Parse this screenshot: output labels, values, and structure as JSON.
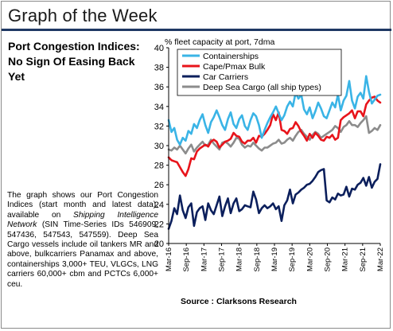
{
  "header": {
    "title": "Graph of the Week"
  },
  "subtitle": "Port Congestion Indices: No Sign Of Easing Back Yet",
  "description": {
    "part1": "The graph shows our Port Congestion Indices (start month and latest data), available on ",
    "italic": "Shipping Intelligence Network",
    "part2": " (SIN Time-Series IDs 546909, 547436, 547543, 547559). Deep Sea Cargo vessels include oil tankers MR and above, bulkcarriers Panamax and above, containerships 3,000+ TEU, VLGCs, LNG carriers 60,000+ cbm and PCTCs 6,000+ ceu."
  },
  "source": "Source : Clarksons Research",
  "colors": {
    "containerships": "#3ab4e6",
    "cape_pmax": "#e8141b",
    "car_carriers": "#0b1f5c",
    "deep_sea": "#8c8c8c",
    "header_rule": "#1f3864"
  },
  "chart_data": {
    "type": "line",
    "ylabel": "% fleet capacity at port, 7dma",
    "ylim": [
      20,
      40
    ],
    "yticks": [
      20,
      22,
      24,
      26,
      28,
      30,
      32,
      34,
      36,
      38,
      40
    ],
    "x_start": "2016-03",
    "x_end": "2022-03",
    "xtick_labels": [
      "Mar-16",
      "Sep-16",
      "Mar-17",
      "Sep-17",
      "Mar-18",
      "Sep-18",
      "Mar-19",
      "Sep-19",
      "Mar-20",
      "Sep-20",
      "Mar-21",
      "Sep-21",
      "Mar-22"
    ],
    "legend_position": "top-right",
    "grid": false,
    "series": [
      {
        "name": "Containerships",
        "color_key": "containerships",
        "values": [
          32.6,
          31.4,
          31.8,
          30.6,
          30.1,
          30.8,
          30.5,
          31.5,
          31.2,
          32.2,
          31.8,
          32.6,
          33.2,
          32.1,
          31.3,
          32.4,
          32.9,
          33.6,
          32.9,
          32.1,
          31.6,
          32.7,
          33.4,
          32.2,
          31.8,
          32.7,
          33.1,
          32.0,
          31.6,
          32.6,
          33.3,
          33.0,
          32.1,
          30.8,
          31.6,
          32.3,
          32.9,
          33.4,
          34.0,
          33.3,
          32.6,
          33.1,
          34.0,
          34.5,
          34.0,
          35.4,
          34.8,
          35.2,
          33.7,
          33.2,
          33.9,
          32.8,
          33.5,
          34.4,
          33.8,
          33.0,
          32.8,
          33.6,
          34.4,
          33.9,
          35.2,
          33.6,
          34.6,
          35.1,
          36.6,
          34.6,
          33.8,
          35.0,
          35.4,
          34.8,
          37.1,
          35.5,
          34.3,
          34.7,
          35.1,
          35.2
        ]
      },
      {
        "name": "Cape/Pmax Bulk",
        "color_key": "cape_pmax",
        "values": [
          28.8,
          28.5,
          28.4,
          28.3,
          27.8,
          27.3,
          26.9,
          27.6,
          28.7,
          28.6,
          29.4,
          29.7,
          29.9,
          30.1,
          29.9,
          30.4,
          30.6,
          30.4,
          29.8,
          30.1,
          30.4,
          30.5,
          30.7,
          31.3,
          31.0,
          30.9,
          30.4,
          30.2,
          30.5,
          30.5,
          30.8,
          30.3,
          31.0,
          30.9,
          31.2,
          31.6,
          32.1,
          33.2,
          32.6,
          33.4,
          31.6,
          31.5,
          31.2,
          31.7,
          31.8,
          32.4,
          32.0,
          31.4,
          31.0,
          30.5,
          31.2,
          30.8,
          31.3,
          31.0,
          30.6,
          30.5,
          30.9,
          30.8,
          31.1,
          30.6,
          30.8,
          32.6,
          32.9,
          33.1,
          33.3,
          33.6,
          32.8,
          33.5,
          33.5,
          33.0,
          34.2,
          34.6,
          34.9,
          35.0,
          34.6,
          34.4
        ]
      },
      {
        "name": "Car Carriers",
        "color_key": "car_carriers",
        "values": [
          21.5,
          22.3,
          23.6,
          23.0,
          24.9,
          23.4,
          22.6,
          23.7,
          24.1,
          21.8,
          23.2,
          23.6,
          23.8,
          22.4,
          24.1,
          23.4,
          23.0,
          23.9,
          24.8,
          22.8,
          23.8,
          24.6,
          23.1,
          24.1,
          24.6,
          23.3,
          23.5,
          23.9,
          23.8,
          23.7,
          25.3,
          24.5,
          23.1,
          23.6,
          23.9,
          23.6,
          23.8,
          24.1,
          23.5,
          23.8,
          22.3,
          23.9,
          24.4,
          25.5,
          24.1,
          25.0,
          25.2,
          25.5,
          25.7,
          26.0,
          26.1,
          26.4,
          26.8,
          27.3,
          27.5,
          27.6,
          24.4,
          24.2,
          24.7,
          24.5,
          25.1,
          24.9,
          25.0,
          25.8,
          24.8,
          25.6,
          25.5,
          26.0,
          26.2,
          26.7,
          25.9,
          26.8,
          25.7,
          26.3,
          26.6,
          28.1
        ]
      },
      {
        "name": "Deep Sea Cargo (all ship types)",
        "color_key": "deep_sea",
        "values": [
          29.6,
          29.5,
          29.8,
          29.6,
          30.0,
          29.6,
          29.2,
          29.7,
          30.1,
          29.4,
          29.8,
          30.1,
          30.4,
          30.0,
          30.1,
          30.6,
          30.2,
          29.9,
          29.6,
          30.3,
          30.4,
          30.2,
          29.9,
          30.3,
          30.8,
          30.7,
          30.1,
          29.8,
          30.0,
          29.9,
          30.3,
          30.0,
          29.7,
          29.5,
          29.8,
          29.8,
          30.0,
          30.2,
          30.3,
          30.6,
          30.2,
          30.3,
          30.6,
          30.8,
          30.5,
          31.0,
          31.4,
          31.6,
          31.2,
          30.9,
          30.6,
          31.1,
          31.4,
          31.2,
          30.8,
          31.0,
          31.2,
          31.4,
          31.6,
          32.0,
          31.8,
          31.4,
          31.9,
          32.1,
          32.5,
          32.1,
          32.1,
          31.9,
          32.3,
          32.6,
          33.0,
          31.3,
          31.5,
          31.8,
          31.6,
          32.1
        ]
      }
    ]
  }
}
